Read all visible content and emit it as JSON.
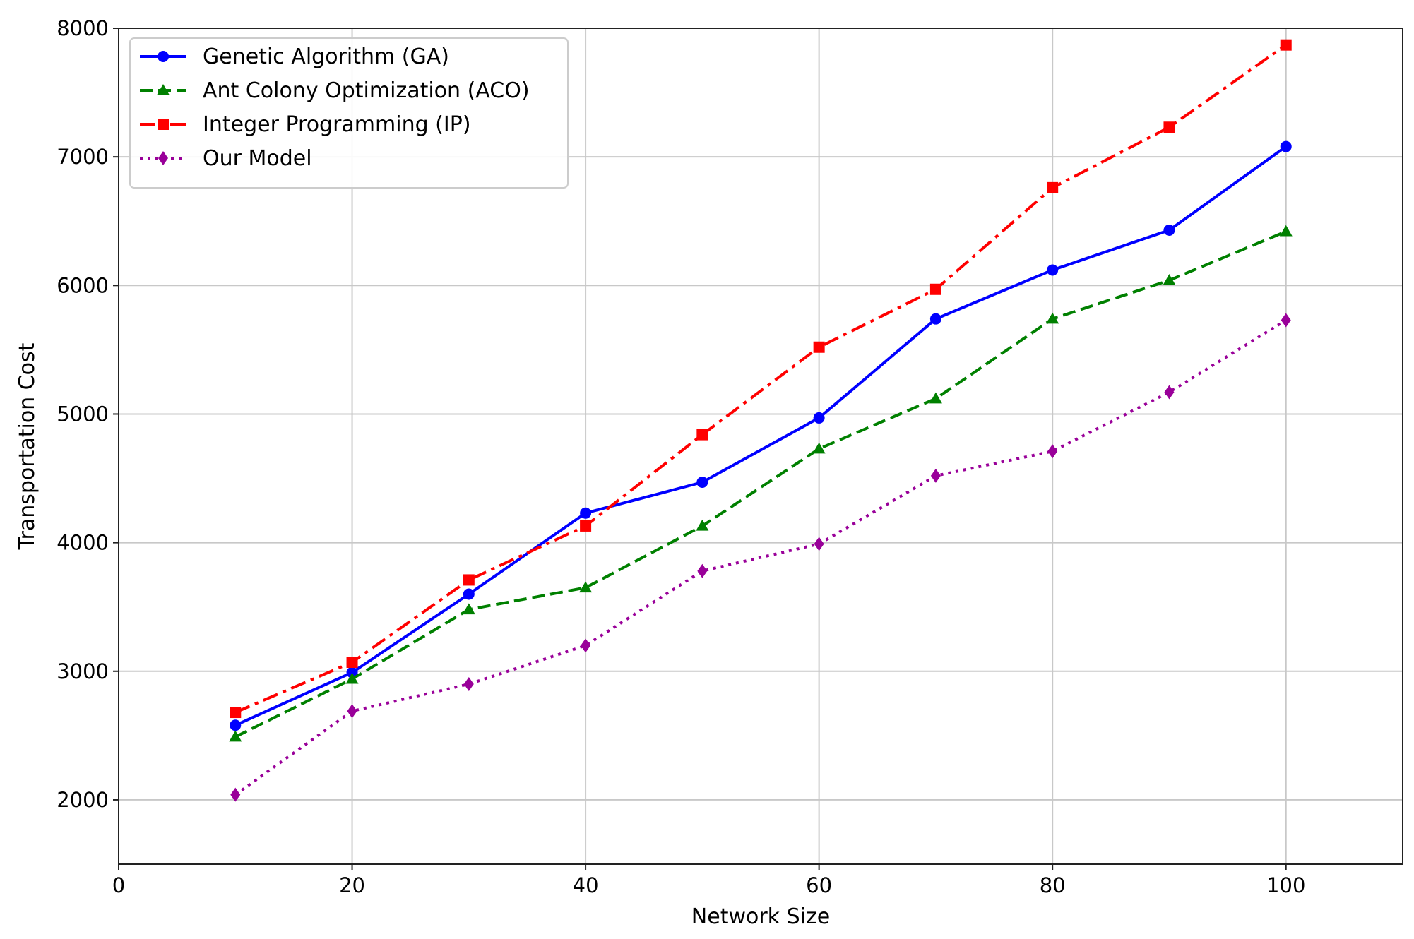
{
  "chart_data": {
    "type": "line",
    "title": "",
    "xlabel": "Network Size",
    "ylabel": "Transportation Cost",
    "xlim": [
      0,
      110
    ],
    "ylim": [
      1500,
      8000
    ],
    "x_ticks": [
      0,
      20,
      40,
      60,
      80,
      100
    ],
    "y_ticks": [
      2000,
      3000,
      4000,
      5000,
      6000,
      7000,
      8000
    ],
    "x_tick_labels": [
      "0",
      "20",
      "40",
      "60",
      "80",
      "100"
    ],
    "y_tick_labels": [
      "2000",
      "3000",
      "4000",
      "5000",
      "6000",
      "7000",
      "8000"
    ],
    "grid": true,
    "legend_position": "top-left",
    "x": [
      10,
      20,
      30,
      40,
      50,
      60,
      70,
      80,
      90,
      100
    ],
    "series": [
      {
        "name": "Genetic Algorithm (GA)",
        "color": "#0000ff",
        "line_style": "solid",
        "marker": "circle",
        "values": [
          2580,
          2990,
          3600,
          4230,
          4470,
          4970,
          5740,
          6120,
          6430,
          7080
        ]
      },
      {
        "name": "Ant Colony Optimization (ACO)",
        "color": "#008000",
        "line_style": "dashed",
        "marker": "triangle",
        "values": [
          2490,
          2940,
          3480,
          3650,
          4130,
          4730,
          5120,
          5740,
          6040,
          6420
        ]
      },
      {
        "name": "Integer Programming (IP)",
        "color": "#ff0000",
        "line_style": "dash-dot",
        "marker": "square",
        "values": [
          2680,
          3070,
          3710,
          4130,
          4840,
          5520,
          5970,
          6760,
          7230,
          7870
        ]
      },
      {
        "name": "Our Model",
        "color": "#990099",
        "line_style": "dotted",
        "marker": "diamond",
        "values": [
          2040,
          2690,
          2900,
          3200,
          3780,
          3990,
          4520,
          4710,
          5170,
          5730
        ]
      }
    ]
  }
}
